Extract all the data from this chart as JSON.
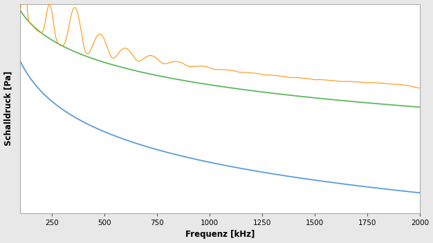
{
  "xlabel": "Frequenz [kHz]",
  "ylabel": "Schalldruck [Pa]",
  "xlim": [
    100,
    2000
  ],
  "xticks": [
    250,
    500,
    750,
    1000,
    1250,
    1500,
    1750,
    2000
  ],
  "bg_color": "#e8e8e8",
  "plot_bg_color": "#ffffff",
  "orange_color": "#FF8C00",
  "green_color": "#5cb85c",
  "blue_color": "#5B9BD5",
  "resonance_freq": 120
}
